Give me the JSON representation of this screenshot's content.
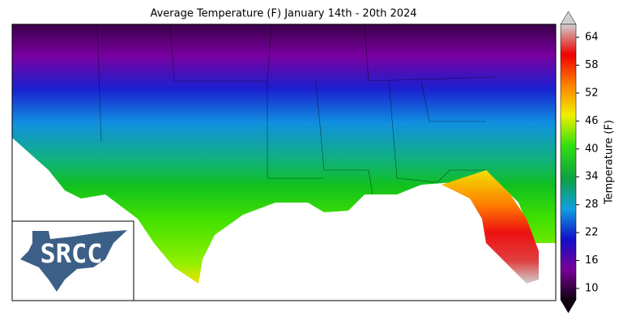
{
  "title": "Average Temperature (F) January 14th - 20th 2024",
  "colorbar": {
    "label": "Temperature (F)",
    "lim": [
      10,
      64
    ],
    "ticks": [
      10,
      16,
      22,
      28,
      34,
      40,
      46,
      52,
      58,
      64
    ]
  },
  "logo": {
    "text": "SRCC"
  }
}
